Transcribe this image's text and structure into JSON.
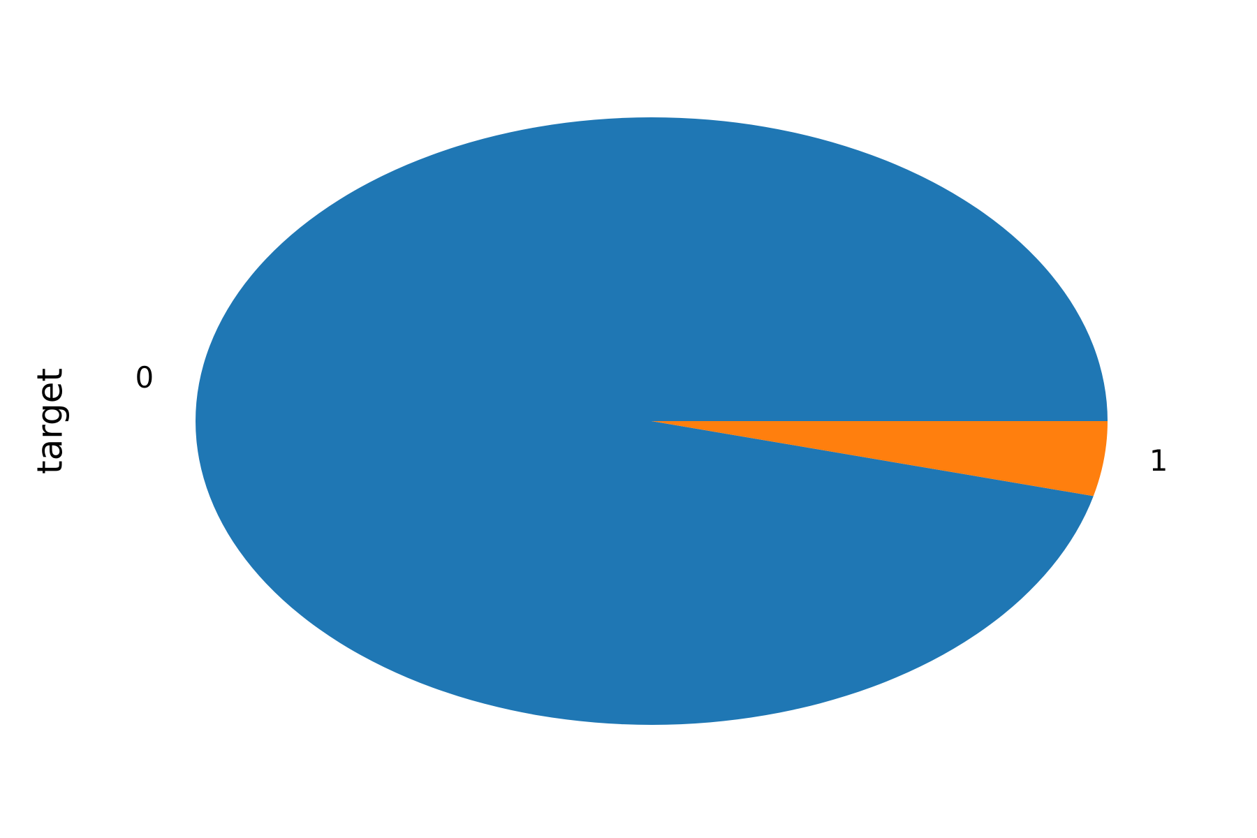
{
  "chart_data": {
    "type": "pie",
    "ylabel": "target",
    "slices": [
      {
        "label": "0",
        "value": 0.9603,
        "color": "#1f77b4"
      },
      {
        "label": "1",
        "value": 0.0397,
        "color": "#ff7f0e"
      }
    ]
  }
}
